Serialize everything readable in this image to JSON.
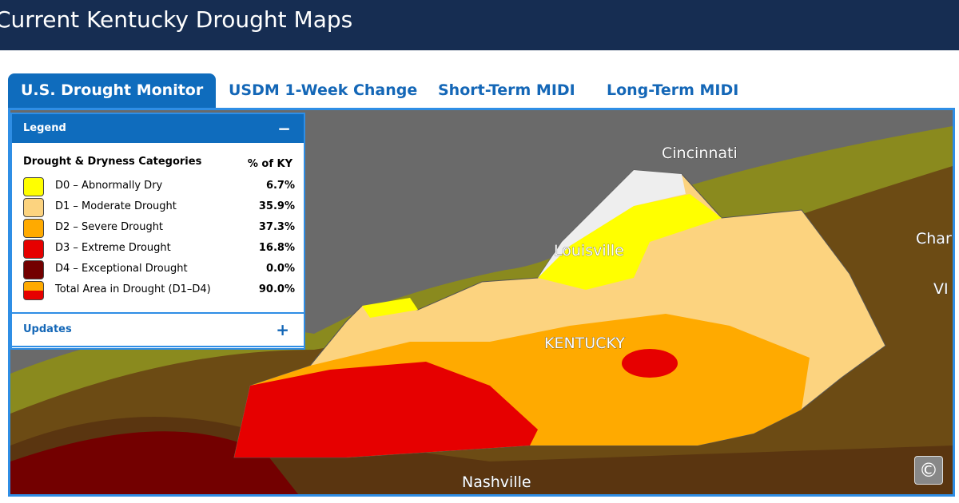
{
  "header": {
    "title": "Current Kentucky Drought Maps"
  },
  "tabs": [
    "U.S. Drought Monitor",
    "USDM 1-Week Change",
    "Short-Term MIDI",
    "Long-Term MIDI"
  ],
  "legend": {
    "title": "Legend",
    "toggle": "−",
    "heading": "Drought & Dryness Categories",
    "column": "% of KY",
    "rows": [
      {
        "label": "D0 – Abnormally Dry",
        "value": "6.7%",
        "color": "#ffff00"
      },
      {
        "label": "D1 – Moderate Drought",
        "value": "35.9%",
        "color": "#fcd37f"
      },
      {
        "label": "D2 – Severe Drought",
        "value": "37.3%",
        "color": "#ffaa00"
      },
      {
        "label": "D3 – Extreme Drought",
        "value": "16.8%",
        "color": "#e60000"
      },
      {
        "label": "D4 – Exceptional Drought",
        "value": "0.0%",
        "color": "#730000"
      },
      {
        "label": "Total Area in Drought (D1–D4)",
        "value": "90.0%",
        "color": "#e60000"
      }
    ],
    "updates": "Updates",
    "updates_toggle": "+"
  },
  "map": {
    "labels": [
      "Cincinnati",
      "Louisville",
      "KENTUCKY",
      "Nashville",
      "Char",
      "VI"
    ],
    "copyright": "©"
  }
}
